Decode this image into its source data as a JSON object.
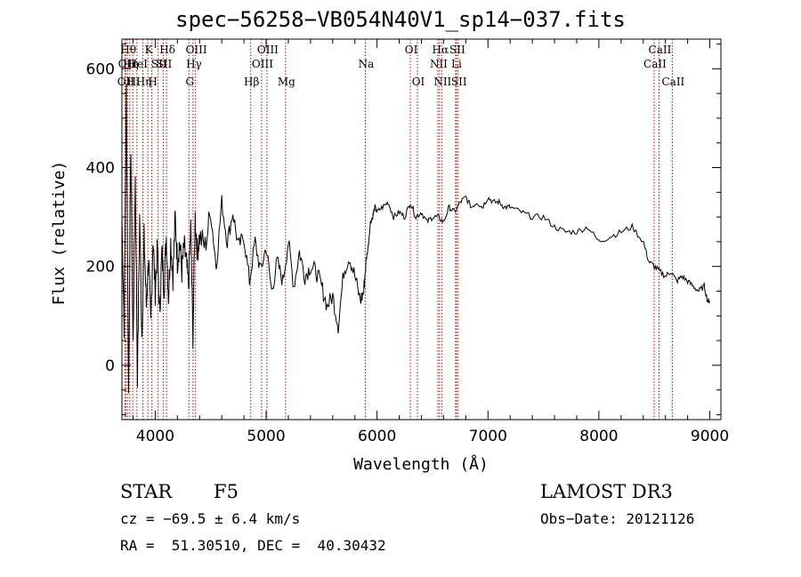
{
  "chart_data": {
    "type": "line",
    "title": "spec−56258−VB054N40V1_sp14−037.fits",
    "xlabel": "Wavelength (Å)",
    "ylabel": "Flux (relative)",
    "xlim": [
      3700,
      9100
    ],
    "ylim": [
      -110,
      660
    ],
    "xticks": [
      4000,
      5000,
      6000,
      7000,
      8000,
      9000
    ],
    "xtick_labels": [
      "4000",
      "5000",
      "6000",
      "7000",
      "8000",
      "9000"
    ],
    "yticks": [
      0,
      200,
      400,
      600
    ],
    "ytick_labels": [
      "0",
      "200",
      "400",
      "600"
    ],
    "series": [
      {
        "name": "flux",
        "x": [
          3700,
          3720,
          3740,
          3760,
          3780,
          3800,
          3820,
          3840,
          3860,
          3880,
          3900,
          3920,
          3940,
          3960,
          3980,
          4000,
          4020,
          4040,
          4060,
          4080,
          4100,
          4120,
          4140,
          4160,
          4180,
          4200,
          4220,
          4240,
          4260,
          4280,
          4300,
          4320,
          4340,
          4360,
          4380,
          4400,
          4450,
          4500,
          4550,
          4600,
          4650,
          4700,
          4750,
          4800,
          4850,
          4900,
          4950,
          5000,
          5050,
          5100,
          5150,
          5200,
          5250,
          5300,
          5350,
          5400,
          5450,
          5500,
          5550,
          5600,
          5650,
          5700,
          5750,
          5800,
          5850,
          5880,
          5900,
          5920,
          5940,
          5960,
          5980,
          6000,
          6050,
          6100,
          6150,
          6200,
          6250,
          6300,
          6350,
          6400,
          6450,
          6500,
          6550,
          6600,
          6650,
          6700,
          6750,
          6800,
          6850,
          6900,
          6950,
          7000,
          7050,
          7100,
          7150,
          7200,
          7300,
          7400,
          7500,
          7600,
          7700,
          7800,
          7900,
          8000,
          8100,
          8200,
          8300,
          8400,
          8450,
          8500,
          8550,
          8600,
          8650,
          8700,
          8750,
          8800,
          8850,
          8900,
          8950,
          8980,
          9000
        ],
        "y": [
          300,
          80,
          560,
          -60,
          450,
          40,
          380,
          -20,
          300,
          60,
          260,
          120,
          220,
          80,
          260,
          150,
          240,
          100,
          230,
          160,
          260,
          140,
          250,
          180,
          300,
          210,
          250,
          190,
          240,
          210,
          160,
          280,
          60,
          300,
          230,
          260,
          240,
          310,
          200,
          330,
          250,
          310,
          240,
          260,
          170,
          250,
          190,
          240,
          150,
          210,
          170,
          250,
          160,
          230,
          180,
          200,
          190,
          160,
          120,
          140,
          80,
          190,
          220,
          180,
          130,
          150,
          210,
          240,
          290,
          300,
          320,
          310,
          320,
          330,
          300,
          310,
          300,
          330,
          300,
          310,
          290,
          300,
          300,
          290,
          320,
          310,
          330,
          340,
          320,
          330,
          320,
          340,
          330,
          330,
          320,
          320,
          310,
          300,
          300,
          280,
          270,
          270,
          280,
          250,
          260,
          270,
          280,
          250,
          210,
          200,
          190,
          180,
          190,
          170,
          180,
          170,
          160,
          150,
          160,
          130,
          130
        ],
        "color": "#000000"
      }
    ],
    "lines": [
      {
        "x": 3727,
        "label": "OII",
        "row": 2
      },
      {
        "x": 3734,
        "label": "OII",
        "row": 1
      },
      {
        "x": 3750,
        "label": "Hθ",
        "row": 0
      },
      {
        "x": 3771,
        "label": "Hη",
        "row": 1
      },
      {
        "x": 3798,
        "label": "Hι",
        "row": 2
      },
      {
        "x": 3835,
        "label": "HeI",
        "row": 1
      },
      {
        "x": 3889,
        "label": "Hη",
        "row": 2
      },
      {
        "x": 3934,
        "label": "K",
        "row": 0
      },
      {
        "x": 3970,
        "label": "H",
        "row": 2
      },
      {
        "x": 4026,
        "label": "SII",
        "row": 1
      },
      {
        "x": 4072,
        "label": "SII",
        "row": 1
      },
      {
        "x": 4102,
        "label": "Hδ",
        "row": 0
      },
      {
        "x": 4304,
        "label": "G",
        "row": 2
      },
      {
        "x": 4341,
        "label": "Hγ",
        "row": 1
      },
      {
        "x": 4363,
        "label": "OIII",
        "row": 0
      },
      {
        "x": 4861,
        "label": "Hβ",
        "row": 2
      },
      {
        "x": 4959,
        "label": "OIII",
        "row": 1
      },
      {
        "x": 5007,
        "label": "OIII",
        "row": 0
      },
      {
        "x": 5175,
        "label": "Mg",
        "row": 2
      },
      {
        "x": 5894,
        "label": "Na",
        "row": 1
      },
      {
        "x": 6300,
        "label": "OI",
        "row": 0
      },
      {
        "x": 6364,
        "label": "OI",
        "row": 2
      },
      {
        "x": 6548,
        "label": "NII",
        "row": 1
      },
      {
        "x": 6563,
        "label": "Hα",
        "row": 0
      },
      {
        "x": 6583,
        "label": "NII",
        "row": 2
      },
      {
        "x": 6708,
        "label": "Li",
        "row": 1
      },
      {
        "x": 6716,
        "label": "SII",
        "row": 0
      },
      {
        "x": 6731,
        "label": "SII",
        "row": 2
      },
      {
        "x": 8498,
        "label": "CaII",
        "row": 1
      },
      {
        "x": 8542,
        "label": "CaII",
        "row": 0
      },
      {
        "x": 8662,
        "label": "CaII",
        "row": 2
      }
    ],
    "line_color": "#cc0000"
  },
  "info": {
    "object_class": "STAR",
    "subclass": "F5",
    "survey": "LAMOST DR3",
    "cz": "cz = −69.5 ± 6.4 km/s",
    "obs_date": "Obs−Date: 20121126",
    "coords": "RA =  51.30510, DEC =  40.30432"
  }
}
